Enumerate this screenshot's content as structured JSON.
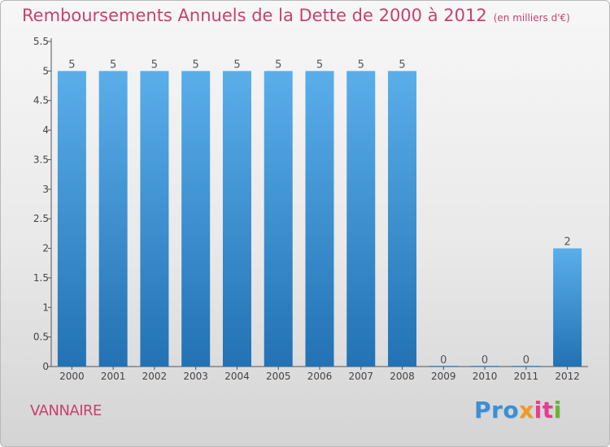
{
  "header": {
    "title": "Remboursements Annuels de la Dette de 2000 à 2012",
    "unit": "(en milliers d'€)"
  },
  "commune": "VANNAIRE",
  "logo": {
    "text": "Proxiti",
    "parts": [
      "Pro",
      "x",
      "it",
      "i"
    ],
    "colors": [
      "#3b8fd4",
      "#f29a1f",
      "#ea3c8c",
      "#6ab52f"
    ]
  },
  "chart_data": {
    "type": "bar",
    "title": "Remboursements Annuels de la Dette de 2000 à 2012",
    "subtitle": "(en milliers d'€)",
    "xlabel": "",
    "ylabel": "",
    "categories": [
      "2000",
      "2001",
      "2002",
      "2003",
      "2004",
      "2005",
      "2006",
      "2007",
      "2008",
      "2009",
      "2010",
      "2011",
      "2012"
    ],
    "values": [
      5,
      5,
      5,
      5,
      5,
      5,
      5,
      5,
      5,
      0,
      0,
      0,
      2
    ],
    "data_labels": [
      "5",
      "5",
      "5",
      "5",
      "5",
      "5",
      "5",
      "5",
      "5",
      "0",
      "0",
      "0",
      "2"
    ],
    "ylim": [
      0,
      5.5
    ],
    "yticks": [
      0,
      0.5,
      1,
      1.5,
      2,
      2.5,
      3,
      3.5,
      4,
      4.5,
      5,
      5.5
    ],
    "ytick_labels": [
      "0",
      "0.5",
      "1",
      "1.5",
      "2",
      "2.5",
      "3",
      "3.5",
      "4",
      "4.5",
      "5",
      "5.5"
    ],
    "grid": false,
    "bar_color": "#3a97dc"
  }
}
